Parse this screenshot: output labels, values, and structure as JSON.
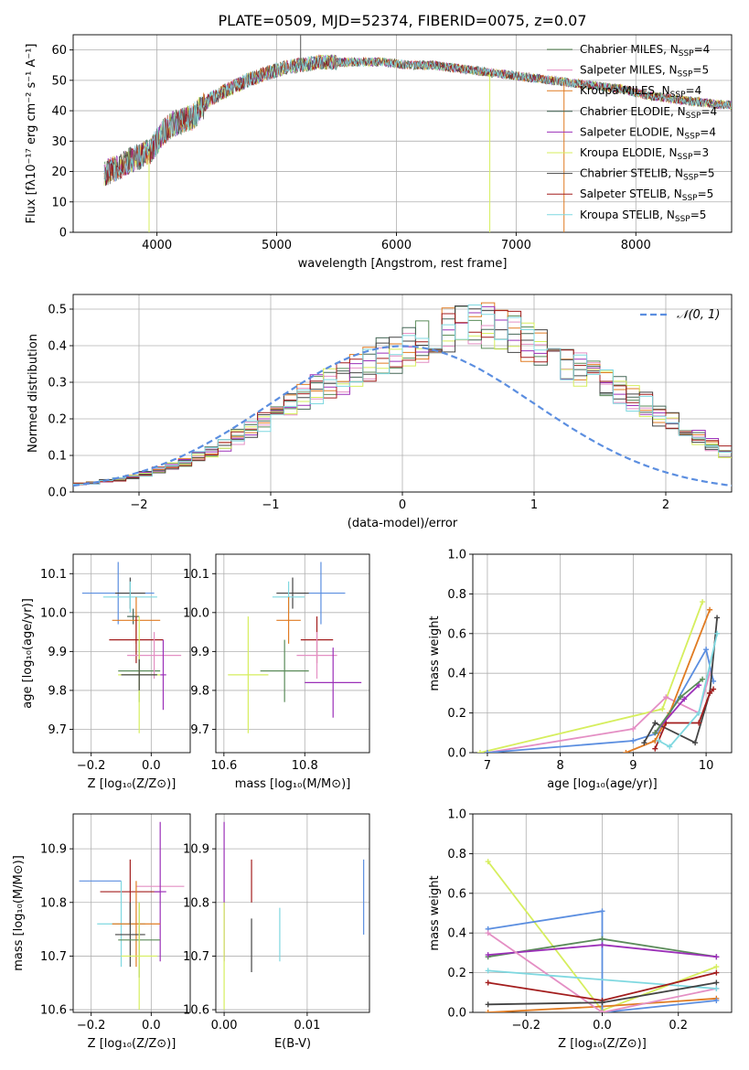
{
  "figure_title": "PLATE=0509, MJD=52374, FIBERID=0075, z=0.07",
  "colors": {
    "Chabrier MILES": "#5b8c5a",
    "Salpeter MILES": "#e48fc4",
    "Kroupa MILES": "#e07b22",
    "Chabrier ELODIE": "#446655",
    "Salpeter ELODIE": "#9b30b8",
    "Kroupa ELODIE": "#d6ee5e",
    "Chabrier STELIB": "#444444",
    "Salpeter STELIB": "#a31d1d",
    "Kroupa STELIB": "#7fd8e0",
    "normal": "#5b8ee0"
  },
  "chart_data": [
    {
      "id": "spectrum",
      "type": "line",
      "title": "PLATE=0509, MJD=52374, FIBERID=0075, z=0.07",
      "xlabel": "wavelength [Angstrom, rest frame]",
      "ylabel": "Flux [fλ10⁻¹⁷ erg cm⁻² s⁻¹ A⁻¹]",
      "xlim": [
        3300,
        8800
      ],
      "ylim": [
        0,
        65
      ],
      "xticks": [
        4000,
        5000,
        6000,
        7000,
        8000
      ],
      "yticks": [
        0,
        10,
        20,
        30,
        40,
        50,
        60
      ],
      "legend_position": "top-right",
      "continuum_x": [
        3550,
        3700,
        3850,
        3950,
        4050,
        4150,
        4300,
        4450,
        4600,
        4750,
        4900,
        5050,
        5200,
        5350,
        5500,
        5700,
        5900,
        6100,
        6300,
        6500,
        6700,
        6900,
        7100,
        7300,
        7500,
        7700,
        7900,
        8100,
        8300,
        8500,
        8700
      ],
      "continuum_y": [
        19,
        22,
        25,
        27,
        33,
        36,
        38,
        44,
        47,
        50,
        52,
        54,
        55,
        56,
        56,
        56,
        56,
        55,
        55,
        54,
        53,
        52,
        51,
        50,
        49,
        48,
        47,
        45,
        44,
        43,
        42
      ],
      "spikes": [
        {
          "x": 3934,
          "y": 0
        },
        {
          "x": 5200,
          "y": 65
        },
        {
          "x": 6780,
          "y": 0
        },
        {
          "x": 7400,
          "y": 0
        }
      ],
      "series": [
        {
          "name": "Chabrier MILES, N_SSP=4",
          "label_main": "Chabrier MILES, N",
          "label_sub": "SSP",
          "label_tail": "=4"
        },
        {
          "name": "Salpeter MILES, N_SSP=5",
          "label_main": "Salpeter MILES, N",
          "label_sub": "SSP",
          "label_tail": "=5"
        },
        {
          "name": "Kroupa MILES, N_SSP=4",
          "label_main": "Kroupa MILES, N",
          "label_sub": "SSP",
          "label_tail": "=4"
        },
        {
          "name": "Chabrier ELODIE, N_SSP=4",
          "label_main": "Chabrier ELODIE, N",
          "label_sub": "SSP",
          "label_tail": "=4"
        },
        {
          "name": "Salpeter ELODIE, N_SSP=4",
          "label_main": "Salpeter ELODIE, N",
          "label_sub": "SSP",
          "label_tail": "=4"
        },
        {
          "name": "Kroupa ELODIE, N_SSP=3",
          "label_main": "Kroupa ELODIE, N",
          "label_sub": "SSP",
          "label_tail": "=3"
        },
        {
          "name": "Chabrier STELIB, N_SSP=5",
          "label_main": "Chabrier STELIB, N",
          "label_sub": "SSP",
          "label_tail": "=5"
        },
        {
          "name": "Salpeter STELIB, N_SSP=5",
          "label_main": "Salpeter STELIB, N",
          "label_sub": "SSP",
          "label_tail": "=5"
        },
        {
          "name": "Kroupa STELIB, N_SSP=5",
          "label_main": "Kroupa STELIB, N",
          "label_sub": "SSP",
          "label_tail": "=5"
        }
      ]
    },
    {
      "id": "residuals",
      "type": "line",
      "xlabel": "(data-model)/error",
      "ylabel": "Normed distribution",
      "xlim": [
        -2.5,
        2.5
      ],
      "ylim": [
        0,
        0.54
      ],
      "xticks": [
        -2,
        -1,
        0,
        1,
        2
      ],
      "xtick_labels": [
        "−2",
        "−1",
        "0",
        "1",
        "2"
      ],
      "yticks": [
        0,
        0.1,
        0.2,
        0.3,
        0.4,
        0.5
      ],
      "ytick_labels": [
        "0.0",
        "0.1",
        "0.2",
        "0.3",
        "0.4",
        "0.5"
      ],
      "legend_position": "top-right",
      "legend_label": "𝒩(0, 1)",
      "bins_start": -2.5,
      "bin_width": 0.1,
      "base_density": [
        0.022,
        0.025,
        0.03,
        0.035,
        0.04,
        0.05,
        0.06,
        0.07,
        0.08,
        0.1,
        0.11,
        0.13,
        0.15,
        0.17,
        0.19,
        0.21,
        0.24,
        0.26,
        0.28,
        0.3,
        0.31,
        0.33,
        0.35,
        0.37,
        0.38,
        0.4,
        0.41,
        0.43,
        0.45,
        0.46,
        0.46,
        0.45,
        0.44,
        0.43,
        0.41,
        0.4,
        0.38,
        0.36,
        0.34,
        0.32,
        0.3,
        0.28,
        0.26,
        0.24,
        0.21,
        0.19,
        0.17,
        0.15,
        0.13,
        0.11
      ]
    },
    {
      "id": "age_vs_Z",
      "type": "scatter",
      "xlabel": "Z [log₁₀(Z/Z⊙)]",
      "ylabel": "age  [log₁₀(age/yr)]",
      "xlim": [
        -0.26,
        0.13
      ],
      "ylim": [
        9.64,
        10.15
      ],
      "xticks": [
        -0.2,
        0.0
      ],
      "xtick_labels": [
        "−0.2",
        "0.0"
      ],
      "yticks": [
        9.7,
        9.8,
        9.9,
        10.0,
        10.1
      ],
      "ytick_labels": [
        "9.7",
        "9.8",
        "9.9",
        "10.0",
        "10.1"
      ],
      "points": [
        {
          "series": "normal",
          "x": -0.11,
          "xerr": 0.12,
          "y": 10.05,
          "yerr": 0.08
        },
        {
          "series": "Chabrier STELIB",
          "x": -0.07,
          "xerr": 0.05,
          "y": 10.05,
          "yerr": 0.04
        },
        {
          "series": "Kroupa STELIB",
          "x": -0.07,
          "xerr": 0.09,
          "y": 10.04,
          "yerr": 0.04
        },
        {
          "series": "Chabrier ELODIE",
          "x": -0.06,
          "xerr": 0.02,
          "y": 9.99,
          "yerr": 0.02
        },
        {
          "series": "Kroupa MILES",
          "x": -0.05,
          "xerr": 0.08,
          "y": 9.98,
          "yerr": 0.06
        },
        {
          "series": "Salpeter STELIB",
          "x": -0.05,
          "xerr": 0.09,
          "y": 9.93,
          "yerr": 0.06
        },
        {
          "series": "Chabrier MILES",
          "x": -0.04,
          "xerr": 0.07,
          "y": 9.85,
          "yerr": 0.08
        },
        {
          "series": "Salpeter MILES",
          "x": 0.01,
          "xerr": 0.09,
          "y": 9.89,
          "yerr": 0.06
        },
        {
          "series": "Salpeter ELODIE",
          "x": 0.04,
          "xerr": 0.01,
          "y": 9.84,
          "yerr": 0.09
        },
        {
          "series": "Kroupa ELODIE",
          "x": -0.04,
          "xerr": 0.07,
          "y": 9.84,
          "yerr": 0.15
        },
        {
          "series": "Chabrier STELIB",
          "x": -0.04,
          "xerr": 0.06,
          "y": 9.84,
          "yerr": 0.04
        }
      ]
    },
    {
      "id": "age_vs_mass",
      "type": "scatter",
      "xlabel": "mass [log₁₀(M/M⊙)]",
      "xlim": [
        10.58,
        10.96
      ],
      "ylim": [
        9.64,
        10.15
      ],
      "xticks": [
        10.6,
        10.8
      ],
      "xtick_labels": [
        "10.6",
        "10.8"
      ],
      "yticks": [
        9.7,
        9.8,
        9.9,
        10.0,
        10.1
      ],
      "ytick_labels": [
        "9.7",
        "9.8",
        "9.9",
        "10.0",
        "10.1"
      ],
      "points": [
        {
          "series": "normal",
          "x": 10.84,
          "xerr": 0.06,
          "y": 10.05,
          "yerr": 0.08
        },
        {
          "series": "Chabrier STELIB",
          "x": 10.77,
          "xerr": 0.04,
          "y": 10.05,
          "yerr": 0.04
        },
        {
          "series": "Kroupa STELIB",
          "x": 10.76,
          "xerr": 0.04,
          "y": 10.04,
          "yerr": 0.04
        },
        {
          "series": "Kroupa MILES",
          "x": 10.76,
          "xerr": 0.03,
          "y": 9.98,
          "yerr": 0.06
        },
        {
          "series": "Salpeter STELIB",
          "x": 10.83,
          "xerr": 0.04,
          "y": 9.93,
          "yerr": 0.06
        },
        {
          "series": "Salpeter MILES",
          "x": 10.83,
          "xerr": 0.05,
          "y": 9.89,
          "yerr": 0.06
        },
        {
          "series": "Chabrier MILES",
          "x": 10.75,
          "xerr": 0.06,
          "y": 9.85,
          "yerr": 0.08
        },
        {
          "series": "Salpeter ELODIE",
          "x": 10.87,
          "xerr": 0.07,
          "y": 9.82,
          "yerr": 0.09
        },
        {
          "series": "Kroupa ELODIE",
          "x": 10.66,
          "xerr": 0.05,
          "y": 9.84,
          "yerr": 0.15
        }
      ]
    },
    {
      "id": "weight_vs_age",
      "type": "line",
      "xlabel": "age  [log₁₀(age/yr)]",
      "ylabel": "mass weight",
      "xlim": [
        6.8,
        10.35
      ],
      "ylim": [
        0,
        1.0
      ],
      "xticks": [
        7,
        8,
        9,
        10
      ],
      "xtick_labels": [
        "7",
        "8",
        "9",
        "10"
      ],
      "yticks": [
        0,
        0.2,
        0.4,
        0.6,
        0.8,
        1.0
      ],
      "ytick_labels": [
        "0.0",
        "0.2",
        "0.4",
        "0.6",
        "0.8",
        "1.0"
      ],
      "series": [
        {
          "series": "Kroupa ELODIE",
          "x": [
            6.9,
            9.4,
            9.95
          ],
          "y": [
            0.0,
            0.22,
            0.76
          ]
        },
        {
          "series": "Salpeter MILES",
          "x": [
            7.0,
            9.0,
            9.45,
            9.9,
            10.05
          ],
          "y": [
            0.0,
            0.12,
            0.28,
            0.2,
            0.4
          ]
        },
        {
          "series": "normal",
          "x": [
            7.0,
            9.0,
            9.35,
            10.0,
            10.1
          ],
          "y": [
            0.0,
            0.06,
            0.1,
            0.52,
            0.36
          ]
        },
        {
          "series": "Kroupa MILES",
          "x": [
            8.9,
            9.3,
            9.5,
            10.05
          ],
          "y": [
            0.0,
            0.06,
            0.2,
            0.72
          ]
        },
        {
          "series": "Chabrier STELIB",
          "x": [
            9.15,
            9.3,
            9.85,
            10.05,
            10.15
          ],
          "y": [
            0.05,
            0.15,
            0.05,
            0.3,
            0.68
          ]
        },
        {
          "series": "Salpeter STELIB",
          "x": [
            9.3,
            9.45,
            9.9,
            10.05,
            10.1
          ],
          "y": [
            0.02,
            0.15,
            0.15,
            0.3,
            0.32
          ]
        },
        {
          "series": "Salpeter ELODIE",
          "x": [
            9.3,
            9.7,
            9.9
          ],
          "y": [
            0.1,
            0.27,
            0.34
          ]
        },
        {
          "series": "Kroupa STELIB",
          "x": [
            9.35,
            9.5,
            9.9,
            10.15
          ],
          "y": [
            0.06,
            0.03,
            0.2,
            0.6
          ]
        },
        {
          "series": "Chabrier MILES",
          "x": [
            9.3,
            9.65,
            9.95
          ],
          "y": [
            0.1,
            0.28,
            0.37
          ]
        }
      ]
    },
    {
      "id": "mass_vs_Z",
      "type": "scatter",
      "xlabel": "Z [log₁₀(Z/Z⊙)]",
      "ylabel": "mass [log₁₀(M/M⊙)]",
      "xlim": [
        -0.26,
        0.13
      ],
      "ylim": [
        10.595,
        10.965
      ],
      "xticks": [
        -0.2,
        0.0
      ],
      "xtick_labels": [
        "−0.2",
        "0.0"
      ],
      "yticks": [
        10.6,
        10.7,
        10.8,
        10.9
      ],
      "ytick_labels": [
        "10.6",
        "10.7",
        "10.8",
        "10.9"
      ],
      "points": [
        {
          "series": "normal",
          "x": -0.17,
          "xerr": 0.07,
          "y": 10.84,
          "yerr": 0.0
        },
        {
          "series": "Salpeter MILES",
          "x": 0.03,
          "xerr": 0.08,
          "y": 10.83,
          "yerr": 0.0
        },
        {
          "series": "Salpeter STELIB",
          "x": -0.07,
          "xerr": 0.1,
          "y": 10.82,
          "yerr": 0.06
        },
        {
          "series": "Salpeter ELODIE",
          "x": 0.03,
          "xerr": 0.02,
          "y": 10.82,
          "yerr": 0.13
        },
        {
          "series": "Kroupa STELIB",
          "x": -0.1,
          "xerr": 0.08,
          "y": 10.76,
          "yerr": 0.08
        },
        {
          "series": "Kroupa MILES",
          "x": -0.05,
          "xerr": 0.08,
          "y": 10.76,
          "yerr": 0.08
        },
        {
          "series": "Chabrier STELIB",
          "x": -0.07,
          "xerr": 0.05,
          "y": 10.74,
          "yerr": 0.06
        },
        {
          "series": "Chabrier MILES",
          "x": -0.04,
          "xerr": 0.07,
          "y": 10.73,
          "yerr": 0.07
        },
        {
          "series": "Kroupa ELODIE",
          "x": -0.04,
          "xerr": 0.06,
          "y": 10.7,
          "yerr": 0.1
        }
      ]
    },
    {
      "id": "mass_vs_ebv",
      "type": "scatter",
      "xlabel": "E(B-V)",
      "xlim": [
        -0.001,
        0.0175
      ],
      "ylim": [
        10.595,
        10.965
      ],
      "xticks": [
        0.0,
        0.01
      ],
      "xtick_labels": [
        "0.00",
        "0.01"
      ],
      "yticks": [
        10.6,
        10.7,
        10.8,
        10.9
      ],
      "ytick_labels": [
        "10.6",
        "10.7",
        "10.8",
        "10.9"
      ],
      "points": [
        {
          "series": "Salpeter ELODIE",
          "x": 0.0,
          "xerr": 0.0,
          "y": 10.82,
          "yerr": 0.13
        },
        {
          "series": "Kroupa ELODIE",
          "x": 0.0,
          "xerr": 0.0,
          "y": 10.7,
          "yerr": 0.1
        },
        {
          "series": "Salpeter STELIB",
          "x": 0.0033,
          "xerr": 0.0,
          "y": 10.84,
          "yerr": 0.04
        },
        {
          "series": "Chabrier STELIB",
          "x": 0.0033,
          "xerr": 0.0,
          "y": 10.72,
          "yerr": 0.05
        },
        {
          "series": "Kroupa STELIB",
          "x": 0.0067,
          "xerr": 0.0,
          "y": 10.74,
          "yerr": 0.05
        },
        {
          "series": "normal",
          "x": 0.0168,
          "xerr": 0.0,
          "y": 10.81,
          "yerr": 0.07
        }
      ]
    },
    {
      "id": "weight_vs_Z",
      "type": "line",
      "xlabel": "Z [log₁₀(Z/Z⊙)]",
      "ylabel": "mass weight",
      "xlim": [
        -0.34,
        0.34
      ],
      "ylim": [
        0,
        1.0
      ],
      "xticks": [
        -0.2,
        0.0,
        0.2
      ],
      "xtick_labels": [
        "−0.2",
        "0.0",
        "0.2"
      ],
      "yticks": [
        0,
        0.2,
        0.4,
        0.6,
        0.8,
        1.0
      ],
      "ytick_labels": [
        "0.0",
        "0.2",
        "0.4",
        "0.6",
        "0.8",
        "1.0"
      ],
      "series": [
        {
          "series": "Kroupa ELODIE",
          "x": [
            -0.3,
            0.0,
            0.3
          ],
          "y": [
            0.76,
            0.01,
            0.23
          ]
        },
        {
          "series": "Kroupa MILES",
          "x": [
            -0.3,
            0.0,
            0.3
          ],
          "y": [
            0.0,
            0.03,
            0.07
          ]
        },
        {
          "series": "normal",
          "x": [
            -0.3,
            0.0,
            0.0,
            0.3
          ],
          "y": [
            0.42,
            0.51,
            0.0,
            0.06
          ]
        },
        {
          "series": "Chabrier MILES",
          "x": [
            -0.3,
            0.0,
            0.3
          ],
          "y": [
            0.28,
            0.37,
            0.28
          ]
        },
        {
          "series": "Salpeter ELODIE",
          "x": [
            -0.3,
            0.0,
            0.3
          ],
          "y": [
            0.29,
            0.34,
            0.28
          ]
        },
        {
          "series": "Salpeter MILES",
          "x": [
            -0.3,
            0.0,
            0.3
          ],
          "y": [
            0.4,
            0.0,
            0.12
          ]
        },
        {
          "series": "Kroupa STELIB",
          "x": [
            -0.3,
            0.3
          ],
          "y": [
            0.21,
            0.12
          ]
        },
        {
          "series": "Salpeter STELIB",
          "x": [
            -0.3,
            0.0,
            0.3
          ],
          "y": [
            0.15,
            0.06,
            0.2
          ]
        },
        {
          "series": "Chabrier STELIB",
          "x": [
            -0.3,
            0.0,
            0.3
          ],
          "y": [
            0.04,
            0.05,
            0.15
          ]
        }
      ]
    }
  ]
}
